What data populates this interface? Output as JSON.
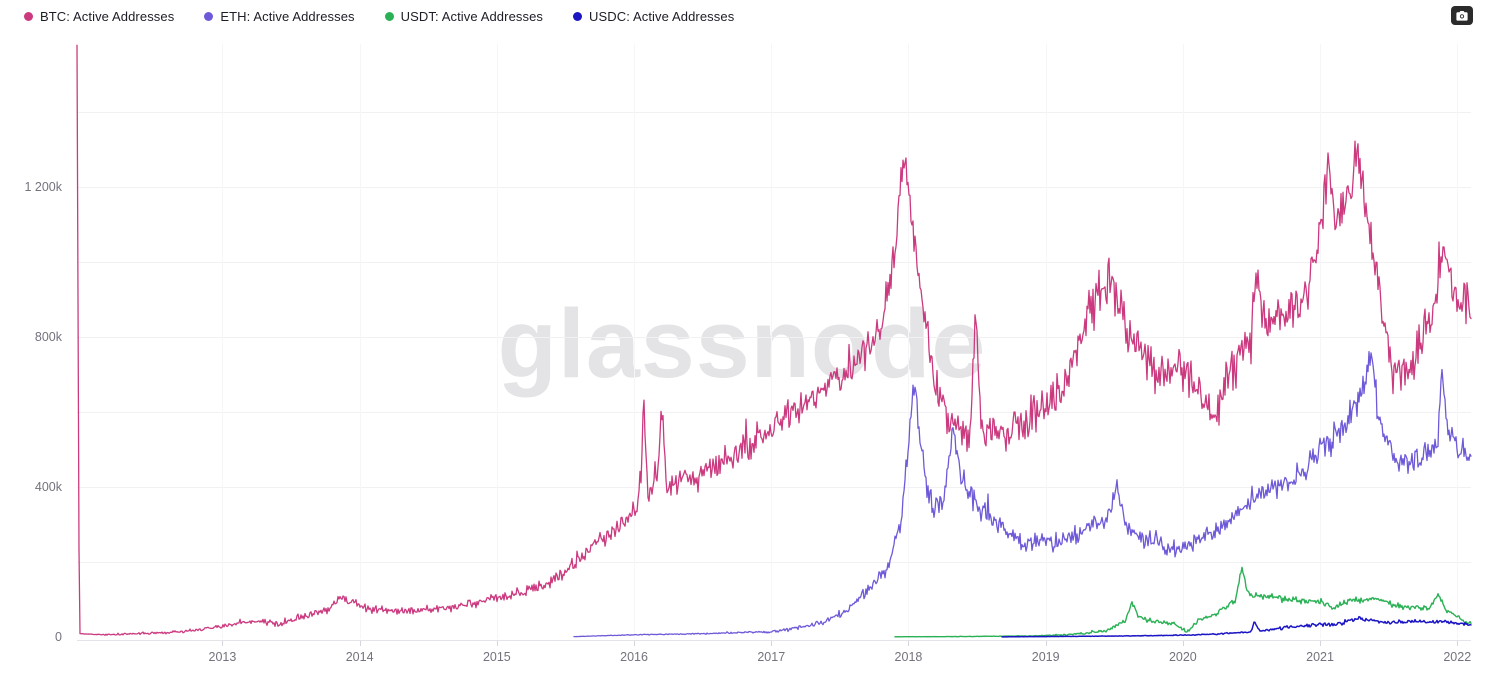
{
  "ui": {
    "watermark": "glassnode",
    "legend": {
      "items": [
        {
          "label": "BTC: Active Addresses",
          "color": "#cb3a7f"
        },
        {
          "label": "ETH: Active Addresses",
          "color": "#6e5ad8"
        },
        {
          "label": "USDT: Active Addresses",
          "color": "#2ab155"
        },
        {
          "label": "USDC: Active Addresses",
          "color": "#1c15c4"
        }
      ]
    },
    "camera_button": {
      "icon": "camera-icon"
    }
  },
  "chart_data": {
    "type": "line",
    "title": "",
    "legend_position": "top-left",
    "grid": true,
    "x_axis": {
      "range": [
        2011.94,
        2022.1
      ],
      "tick_values": [
        2013,
        2014,
        2015,
        2016,
        2017,
        2018,
        2019,
        2020,
        2021,
        2022
      ],
      "tick_labels": [
        "2013",
        "2014",
        "2015",
        "2016",
        "2017",
        "2018",
        "2019",
        "2020",
        "2021",
        "2022"
      ]
    },
    "y_axis": {
      "unit": "active addresses (thousands)",
      "range_k": [
        0,
        1578
      ],
      "grid_step_k": 200,
      "ticks": [
        {
          "value_k": 0,
          "label": "0"
        },
        {
          "value_k": 400,
          "label": "400k"
        },
        {
          "value_k": 800,
          "label": "800k"
        },
        {
          "value_k": 1200,
          "label": "1 200k"
        }
      ]
    },
    "series": [
      {
        "name": "BTC: Active Addresses",
        "color": "#cb3a7f",
        "line_width": 1.3,
        "seed": 3,
        "anchors_k": [
          [
            2011.94,
            1578
          ],
          [
            2011.957,
            9
          ],
          [
            2012.1,
            6
          ],
          [
            2012.4,
            9
          ],
          [
            2012.7,
            14
          ],
          [
            2012.95,
            25
          ],
          [
            2013.1,
            36
          ],
          [
            2013.25,
            42
          ],
          [
            2013.4,
            38
          ],
          [
            2013.55,
            50
          ],
          [
            2013.75,
            70
          ],
          [
            2013.87,
            108
          ],
          [
            2013.95,
            92
          ],
          [
            2014.1,
            72
          ],
          [
            2014.35,
            68
          ],
          [
            2014.6,
            76
          ],
          [
            2014.85,
            90
          ],
          [
            2015.0,
            105
          ],
          [
            2015.25,
            125
          ],
          [
            2015.45,
            155
          ],
          [
            2015.65,
            230
          ],
          [
            2015.85,
            280
          ],
          [
            2016.0,
            340
          ],
          [
            2016.05,
            400
          ],
          [
            2016.07,
            640
          ],
          [
            2016.1,
            380
          ],
          [
            2016.17,
            420
          ],
          [
            2016.2,
            615
          ],
          [
            2016.24,
            400
          ],
          [
            2016.45,
            430
          ],
          [
            2016.7,
            470
          ],
          [
            2017.0,
            560
          ],
          [
            2017.3,
            640
          ],
          [
            2017.6,
            730
          ],
          [
            2017.8,
            840
          ],
          [
            2017.9,
            1020
          ],
          [
            2017.96,
            1260
          ],
          [
            2018.02,
            1130
          ],
          [
            2018.08,
            950
          ],
          [
            2018.17,
            700
          ],
          [
            2018.3,
            570
          ],
          [
            2018.45,
            540
          ],
          [
            2018.49,
            900
          ],
          [
            2018.53,
            540
          ],
          [
            2018.7,
            545
          ],
          [
            2018.9,
            590
          ],
          [
            2019.1,
            650
          ],
          [
            2019.3,
            840
          ],
          [
            2019.46,
            960
          ],
          [
            2019.6,
            820
          ],
          [
            2019.8,
            700
          ],
          [
            2020.0,
            720
          ],
          [
            2020.18,
            620
          ],
          [
            2020.22,
            560
          ],
          [
            2020.35,
            720
          ],
          [
            2020.5,
            800
          ],
          [
            2020.53,
            960
          ],
          [
            2020.6,
            820
          ],
          [
            2020.75,
            850
          ],
          [
            2020.9,
            900
          ],
          [
            2021.0,
            1080
          ],
          [
            2021.05,
            1250
          ],
          [
            2021.12,
            1120
          ],
          [
            2021.2,
            1150
          ],
          [
            2021.27,
            1300
          ],
          [
            2021.33,
            1150
          ],
          [
            2021.42,
            950
          ],
          [
            2021.52,
            720
          ],
          [
            2021.62,
            690
          ],
          [
            2021.75,
            800
          ],
          [
            2021.85,
            900
          ],
          [
            2021.9,
            1050
          ],
          [
            2021.95,
            950
          ],
          [
            2022.0,
            880
          ],
          [
            2022.08,
            910
          ]
        ],
        "noise_k": [
          [
            2011.94,
            0
          ],
          [
            2012.2,
            2
          ],
          [
            2012.8,
            4
          ],
          [
            2013.3,
            8
          ],
          [
            2013.9,
            12
          ],
          [
            2014.5,
            10
          ],
          [
            2015.0,
            12
          ],
          [
            2015.6,
            18
          ],
          [
            2016.0,
            30
          ],
          [
            2016.5,
            35
          ],
          [
            2017.0,
            42
          ],
          [
            2017.6,
            48
          ],
          [
            2017.95,
            55
          ],
          [
            2018.2,
            50
          ],
          [
            2018.6,
            45
          ],
          [
            2019.0,
            50
          ],
          [
            2019.45,
            60
          ],
          [
            2019.8,
            55
          ],
          [
            2020.3,
            52
          ],
          [
            2020.8,
            58
          ],
          [
            2021.05,
            62
          ],
          [
            2021.3,
            62
          ],
          [
            2021.55,
            50
          ],
          [
            2021.9,
            60
          ],
          [
            2022.08,
            55
          ]
        ]
      },
      {
        "name": "ETH: Active Addresses",
        "color": "#6e5ad8",
        "line_width": 1.3,
        "seed": 11,
        "anchors_k": [
          [
            2015.56,
            1
          ],
          [
            2016.0,
            6
          ],
          [
            2016.5,
            9
          ],
          [
            2017.0,
            14
          ],
          [
            2017.2,
            24
          ],
          [
            2017.4,
            42
          ],
          [
            2017.55,
            70
          ],
          [
            2017.7,
            125
          ],
          [
            2017.85,
            185
          ],
          [
            2017.95,
            320
          ],
          [
            2018.02,
            600
          ],
          [
            2018.045,
            680
          ],
          [
            2018.1,
            470
          ],
          [
            2018.17,
            340
          ],
          [
            2018.26,
            370
          ],
          [
            2018.33,
            560
          ],
          [
            2018.38,
            430
          ],
          [
            2018.5,
            350
          ],
          [
            2018.65,
            300
          ],
          [
            2018.85,
            250
          ],
          [
            2019.05,
            255
          ],
          [
            2019.25,
            275
          ],
          [
            2019.45,
            320
          ],
          [
            2019.52,
            400
          ],
          [
            2019.6,
            290
          ],
          [
            2019.75,
            255
          ],
          [
            2019.95,
            230
          ],
          [
            2020.1,
            255
          ],
          [
            2020.25,
            285
          ],
          [
            2020.45,
            350
          ],
          [
            2020.62,
            400
          ],
          [
            2020.8,
            415
          ],
          [
            2021.0,
            495
          ],
          [
            2021.15,
            545
          ],
          [
            2021.3,
            650
          ],
          [
            2021.37,
            760
          ],
          [
            2021.44,
            560
          ],
          [
            2021.55,
            480
          ],
          [
            2021.68,
            465
          ],
          [
            2021.8,
            490
          ],
          [
            2021.86,
            520
          ],
          [
            2021.885,
            730
          ],
          [
            2021.92,
            560
          ],
          [
            2022.0,
            505
          ],
          [
            2022.08,
            500
          ]
        ],
        "noise_k": [
          [
            2015.56,
            0.5
          ],
          [
            2016.5,
            1.5
          ],
          [
            2017.0,
            3
          ],
          [
            2017.5,
            8
          ],
          [
            2017.9,
            18
          ],
          [
            2018.05,
            40
          ],
          [
            2018.3,
            35
          ],
          [
            2018.7,
            26
          ],
          [
            2019.2,
            24
          ],
          [
            2019.6,
            26
          ],
          [
            2020.0,
            22
          ],
          [
            2020.5,
            28
          ],
          [
            2021.0,
            34
          ],
          [
            2021.37,
            42
          ],
          [
            2021.7,
            34
          ],
          [
            2022.08,
            34
          ]
        ]
      },
      {
        "name": "USDT: Active Addresses",
        "color": "#2ab155",
        "line_width": 1.4,
        "seed": 5,
        "anchors_k": [
          [
            2017.9,
            0.6
          ],
          [
            2018.4,
            1.2
          ],
          [
            2018.9,
            3
          ],
          [
            2019.2,
            7
          ],
          [
            2019.45,
            18
          ],
          [
            2019.58,
            45
          ],
          [
            2019.63,
            92
          ],
          [
            2019.68,
            52
          ],
          [
            2019.8,
            40
          ],
          [
            2019.95,
            34
          ],
          [
            2020.03,
            12
          ],
          [
            2020.1,
            40
          ],
          [
            2020.25,
            65
          ],
          [
            2020.38,
            95
          ],
          [
            2020.43,
            185
          ],
          [
            2020.48,
            110
          ],
          [
            2020.6,
            110
          ],
          [
            2020.75,
            102
          ],
          [
            2020.9,
            95
          ],
          [
            2021.0,
            98
          ],
          [
            2021.1,
            80
          ],
          [
            2021.25,
            100
          ],
          [
            2021.38,
            102
          ],
          [
            2021.5,
            88
          ],
          [
            2021.65,
            78
          ],
          [
            2021.8,
            78
          ],
          [
            2021.86,
            115
          ],
          [
            2021.92,
            72
          ],
          [
            2022.0,
            55
          ],
          [
            2022.08,
            36
          ]
        ],
        "noise_k": [
          [
            2017.9,
            0.2
          ],
          [
            2018.9,
            0.8
          ],
          [
            2019.3,
            3
          ],
          [
            2019.7,
            6
          ],
          [
            2020.1,
            6
          ],
          [
            2020.5,
            9
          ],
          [
            2021.0,
            9
          ],
          [
            2021.5,
            8
          ],
          [
            2022.08,
            5
          ]
        ]
      },
      {
        "name": "USDC: Active Addresses",
        "color": "#1c15c4",
        "line_width": 1.5,
        "seed": 8,
        "anchors_k": [
          [
            2018.68,
            0.5
          ],
          [
            2019.0,
            1.2
          ],
          [
            2019.5,
            2.5
          ],
          [
            2019.9,
            4
          ],
          [
            2020.1,
            6
          ],
          [
            2020.3,
            9
          ],
          [
            2020.5,
            14
          ],
          [
            2020.52,
            42
          ],
          [
            2020.56,
            16
          ],
          [
            2020.65,
            20
          ],
          [
            2020.78,
            27
          ],
          [
            2020.9,
            30
          ],
          [
            2021.0,
            32
          ],
          [
            2021.15,
            36
          ],
          [
            2021.28,
            48
          ],
          [
            2021.38,
            44
          ],
          [
            2021.5,
            38
          ],
          [
            2021.65,
            41
          ],
          [
            2021.8,
            40
          ],
          [
            2021.9,
            41
          ],
          [
            2022.0,
            38
          ],
          [
            2022.08,
            33
          ]
        ],
        "noise_k": [
          [
            2018.68,
            0.15
          ],
          [
            2019.5,
            0.6
          ],
          [
            2020.0,
            1
          ],
          [
            2020.4,
            2
          ],
          [
            2020.8,
            4
          ],
          [
            2021.2,
            6
          ],
          [
            2021.6,
            5
          ],
          [
            2022.08,
            4
          ]
        ]
      }
    ]
  }
}
